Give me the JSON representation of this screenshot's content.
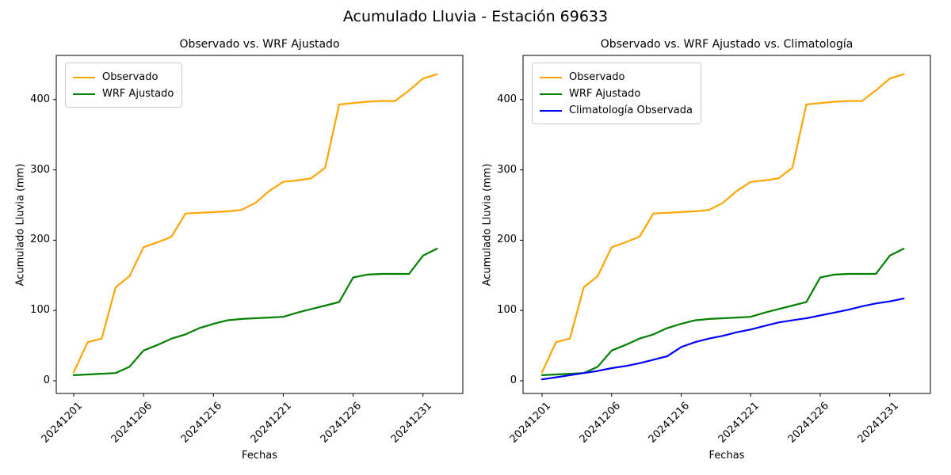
{
  "figure": {
    "suptitle": "Acumulado Lluvia - Estación 69633",
    "background": "#ffffff"
  },
  "axis_shared": {
    "xlabel": "Fechas",
    "ylabel": "Acumulado Lluvia (mm)",
    "yticks": [
      0,
      100,
      200,
      300,
      400
    ],
    "xtick_labels": [
      "20241201",
      "20241206",
      "20241216",
      "20241221",
      "20241226",
      "20241231"
    ]
  },
  "colors": {
    "observado": "#FFA500",
    "wrf_ajustado": "#008000",
    "climatologia": "#0000FF",
    "spine": "#000000",
    "legend_border": "#cccccc"
  },
  "chart_data": [
    {
      "type": "line",
      "title": "Observado vs. WRF Ajustado",
      "xlabel": "Fechas",
      "ylabel": "Acumulado Lluvia (mm)",
      "ylim": [
        0,
        460
      ],
      "grid": false,
      "legend_position": "upper-left",
      "yticks": [
        0,
        100,
        200,
        300,
        400
      ],
      "xtick_labels": [
        "20241201",
        "20241206",
        "20241216",
        "20241221",
        "20241226",
        "20241231"
      ],
      "categories": [
        "20241201",
        "20241202",
        "20241203",
        "20241204",
        "20241205",
        "20241206",
        "20241207",
        "20241208",
        "20241209",
        "20241210",
        "20241216",
        "20241217",
        "20241218",
        "20241219",
        "20241220",
        "20241221",
        "20241222",
        "20241223",
        "20241224",
        "20241225",
        "20241226",
        "20241227",
        "20241228",
        "20241229",
        "20241230",
        "20241231",
        "20250101"
      ],
      "series": [
        {
          "name": "Observado",
          "color": "#FFA500",
          "values": [
            12,
            55,
            60,
            133,
            149,
            190,
            197,
            205,
            238,
            239,
            240,
            241,
            243,
            253,
            270,
            283,
            285,
            288,
            303,
            393,
            395,
            397,
            398,
            398,
            413,
            430,
            436
          ]
        },
        {
          "name": "WRF Ajustado",
          "color": "#008000",
          "values": [
            8,
            9,
            10,
            11,
            20,
            43,
            51,
            60,
            66,
            75,
            81,
            86,
            88,
            89,
            90,
            91,
            97,
            102,
            107,
            112,
            147,
            151,
            152,
            152,
            152,
            178,
            188
          ]
        }
      ]
    },
    {
      "type": "line",
      "title": "Observado vs. WRF Ajustado vs. Climatología",
      "xlabel": "Fechas",
      "ylabel": "Acumulado Lluvia (mm)",
      "ylim": [
        0,
        460
      ],
      "grid": false,
      "legend_position": "upper-left",
      "yticks": [
        0,
        100,
        200,
        300,
        400
      ],
      "xtick_labels": [
        "20241201",
        "20241206",
        "20241216",
        "20241221",
        "20241226",
        "20241231"
      ],
      "categories": [
        "20241201",
        "20241202",
        "20241203",
        "20241204",
        "20241205",
        "20241206",
        "20241207",
        "20241208",
        "20241209",
        "20241210",
        "20241216",
        "20241217",
        "20241218",
        "20241219",
        "20241220",
        "20241221",
        "20241222",
        "20241223",
        "20241224",
        "20241225",
        "20241226",
        "20241227",
        "20241228",
        "20241229",
        "20241230",
        "20241231",
        "20250101"
      ],
      "series": [
        {
          "name": "Observado",
          "color": "#FFA500",
          "values": [
            12,
            55,
            60,
            133,
            149,
            190,
            197,
            205,
            238,
            239,
            240,
            241,
            243,
            253,
            270,
            283,
            285,
            288,
            303,
            393,
            395,
            397,
            398,
            398,
            413,
            430,
            436
          ]
        },
        {
          "name": "WRF Ajustado",
          "color": "#008000",
          "values": [
            8,
            9,
            10,
            11,
            20,
            43,
            51,
            60,
            66,
            75,
            81,
            86,
            88,
            89,
            90,
            91,
            97,
            102,
            107,
            112,
            147,
            151,
            152,
            152,
            152,
            178,
            188
          ]
        },
        {
          "name": "Climatología Observada",
          "color": "#0000FF",
          "values": [
            2,
            5,
            8,
            11,
            14,
            18,
            21,
            25,
            30,
            35,
            48,
            55,
            60,
            64,
            69,
            73,
            78,
            83,
            86,
            89,
            93,
            97,
            101,
            106,
            110,
            113,
            117
          ]
        }
      ]
    }
  ]
}
